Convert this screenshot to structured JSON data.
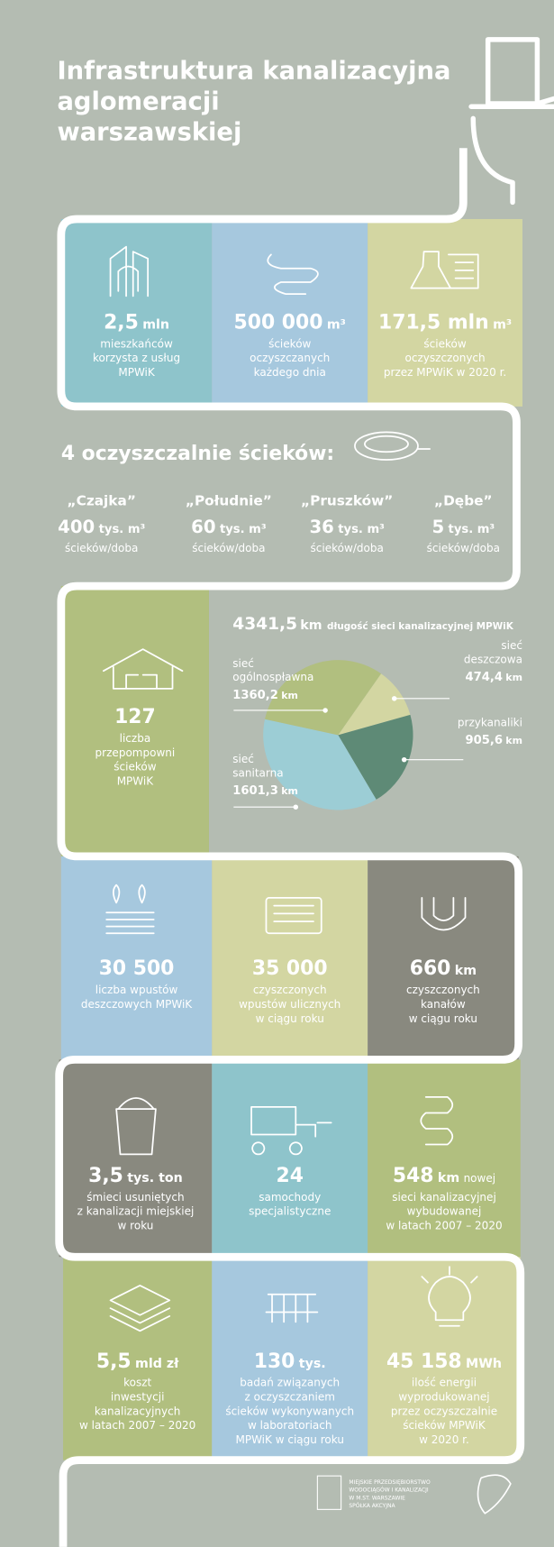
{
  "header": {
    "title_lines": [
      "Infrastruktura kanalizacyjna",
      "aglomeracji",
      "warszawskiej"
    ]
  },
  "tiles": [
    {
      "value": "2,5",
      "unit": "mln",
      "desc": [
        "mieszkańców",
        "korzysta z usług",
        "MPWiK"
      ]
    },
    {
      "value": "500 000",
      "unit": "m³",
      "desc": [
        "ścieków",
        "oczyszczanych",
        "każdego dnia"
      ]
    },
    {
      "value": "171,5 mln",
      "unit": "m³",
      "desc": [
        "ścieków",
        "oczyszczonych",
        "przez MPWiK w 2020 r."
      ]
    },
    {
      "value": "127",
      "desc": [
        "liczba",
        "przepompowni",
        "ścieków",
        "MPWiK"
      ]
    },
    {
      "value": "30 500",
      "desc": [
        "liczba wpustów",
        "deszczowych MPWiK"
      ]
    },
    {
      "value": "35 000",
      "desc": [
        "czyszczonych",
        "wpustów ulicznych",
        "w ciągu roku"
      ]
    },
    {
      "value": "660",
      "unit": "km",
      "desc": [
        "czyszczonych",
        "kanałów",
        "w ciągu roku"
      ]
    },
    {
      "value": "3,5",
      "unit": "tys. ton",
      "desc": [
        "śmieci usuniętych",
        "z kanalizacji miejskiej",
        "w roku"
      ]
    },
    {
      "value": "24",
      "desc": [
        "samochody",
        "specjalistyczne"
      ]
    },
    {
      "value": "548",
      "unit": "km",
      "suffix": "nowej",
      "desc": [
        "sieci kanalizacyjnej",
        "wybudowanej",
        "w latach 2007 – 2020"
      ]
    },
    {
      "value": "5,5",
      "unit": "mld zł",
      "desc": [
        "koszt",
        "inwestycji",
        "kanalizacyjnych",
        "w latach 2007 – 2020"
      ]
    },
    {
      "value": "130",
      "unit": "tys.",
      "desc": [
        "badań związanych",
        "z oczyszczaniem",
        "ścieków wykonywanych",
        "w laboratoriach",
        "MPWiK w ciągu roku"
      ]
    },
    {
      "value": "45 158",
      "unit": "MWh",
      "desc": [
        "ilość energii",
        "wyprodukowanej",
        "przez oczyszczalnie",
        "ścieków MPWiK",
        "w 2020 r."
      ]
    }
  ],
  "plants": {
    "title": "4 oczyszczalnie ścieków:",
    "items": [
      {
        "name": "„Czajka”",
        "value": "400",
        "unit": "tys. m³",
        "desc": "ścieków/doba"
      },
      {
        "name": "„Południe”",
        "value": "60",
        "unit": "tys. m³",
        "desc": "ścieków/doba"
      },
      {
        "name": "„Pruszków”",
        "value": "36",
        "unit": "tys. m³",
        "desc": "ścieków/doba"
      },
      {
        "name": "„Dębe”",
        "value": "5",
        "unit": "tys. m³",
        "desc": "ścieków/doba"
      }
    ]
  },
  "network": {
    "type": "pie",
    "total": "4341,5",
    "unit": "km",
    "label": "długość sieci kanalizacyjnej MPWiK",
    "slices": [
      {
        "name": [
          "sieć",
          "deszczowa"
        ],
        "value": 474.4,
        "value_label": "474,4",
        "color": "#d3d6a2"
      },
      {
        "name": [
          "przykanaliki"
        ],
        "value": 905.6,
        "value_label": "905,6",
        "color": "#5e8a76"
      },
      {
        "name": [
          "sieć",
          "sanitarna"
        ],
        "value": 1601.3,
        "value_label": "1601,3",
        "color": "#9ccdd5"
      },
      {
        "name": [
          "sieć",
          "ogólnospławna"
        ],
        "value": 1360.2,
        "value_label": "1360,2",
        "color": "#b1bf7f"
      }
    ]
  },
  "footer": {
    "logo_lines": [
      "MIEJSKIE PRZEDSIĘBIORSTWO",
      "WODOCIĄGÓW I KANALIZACJI",
      "W M.ST. WARSZAWIE",
      "SPÓŁKA AKCYJNA"
    ]
  }
}
